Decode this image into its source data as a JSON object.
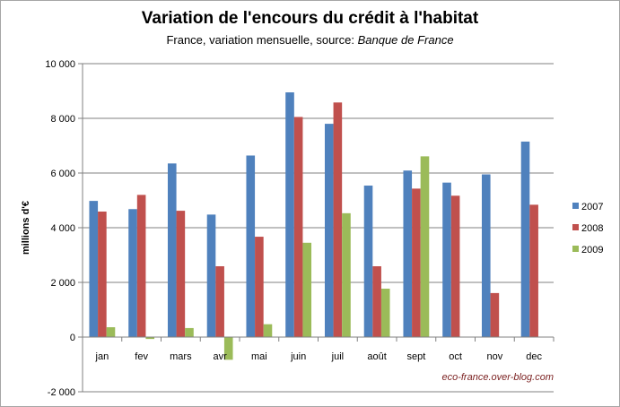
{
  "title": "Variation de l'encours du crédit à l'habitat",
  "subtitle_prefix": "France, variation mensuelle, source: ",
  "subtitle_source": "Banque de France",
  "credit": "eco-france.over-blog.com",
  "chart_data": {
    "type": "bar",
    "title": "Variation de l'encours du crédit à l'habitat",
    "ylabel": "millions d'€",
    "xlabel": "",
    "ylim": [
      -2000,
      10000
    ],
    "yticks": [
      -2000,
      0,
      2000,
      4000,
      6000,
      8000,
      10000
    ],
    "ytick_labels": [
      "-2 000",
      "0",
      "2 000",
      "4 000",
      "6 000",
      "8 000",
      "10 000"
    ],
    "grid": true,
    "legend_position": "right",
    "categories": [
      "jan",
      "fev",
      "mars",
      "avr",
      "mai",
      "juin",
      "juil",
      "août",
      "sept",
      "oct",
      "nov",
      "dec"
    ],
    "series": [
      {
        "name": "2007",
        "color": "#4f81bd",
        "values": [
          4980,
          4680,
          6350,
          4480,
          6640,
          8950,
          7800,
          5540,
          6090,
          5650,
          5950,
          7150
        ]
      },
      {
        "name": "2008",
        "color": "#c0504d",
        "values": [
          4590,
          5200,
          4620,
          2590,
          3670,
          8050,
          8580,
          2590,
          5430,
          5170,
          1610,
          4840
        ]
      },
      {
        "name": "2009",
        "color": "#9bbb59",
        "values": [
          360,
          -70,
          330,
          -830,
          470,
          3450,
          4530,
          1770,
          6610,
          null,
          null,
          null
        ]
      }
    ]
  }
}
